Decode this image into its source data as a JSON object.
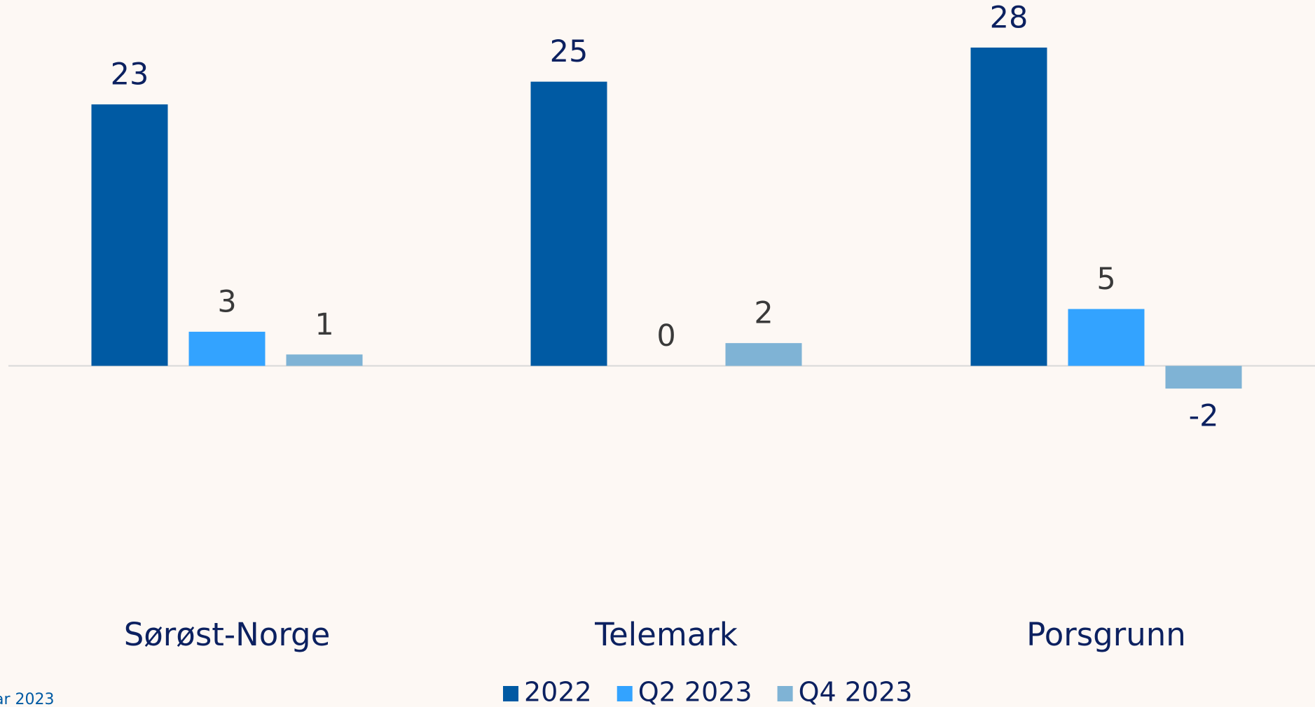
{
  "chart_data": {
    "type": "bar",
    "categories": [
      "Sørøst-Norge",
      "Telemark",
      "Porsgrunn"
    ],
    "series": [
      {
        "name": "2022",
        "color": "#005aa3",
        "values": [
          23,
          25,
          28
        ]
      },
      {
        "name": "Q2 2023",
        "color": "#33a3ff",
        "values": [
          3,
          0,
          5
        ]
      },
      {
        "name": "Q4 2023",
        "color": "#7fb3d5",
        "values": [
          1,
          2,
          -2
        ]
      }
    ],
    "ylim": [
      -10,
      32
    ],
    "footnote": "ar 2023"
  }
}
